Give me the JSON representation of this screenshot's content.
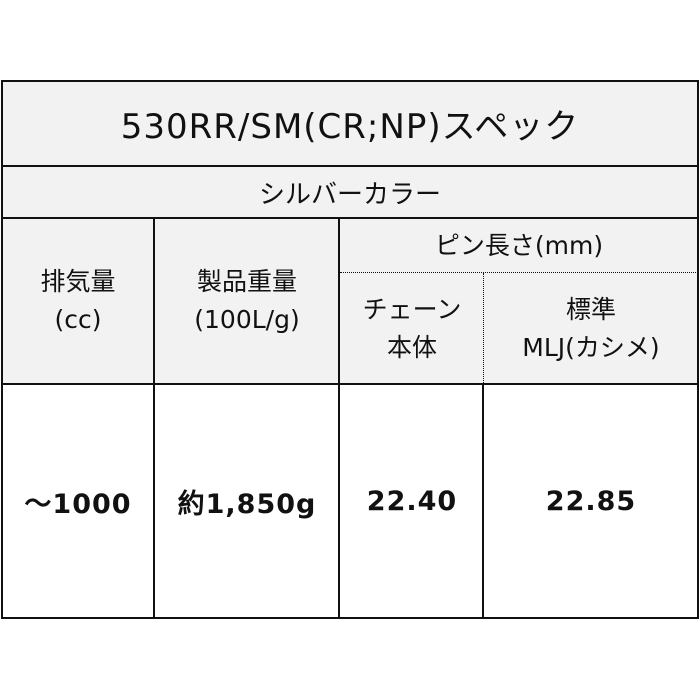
{
  "title": "530RR/SM(CR;NP)スペック",
  "color": "シルバーカラー",
  "headers": {
    "displacement": [
      "排気量",
      "(cc)"
    ],
    "weight": [
      "製品重量",
      "(100L/g)"
    ],
    "pin_length": "ピン長さ(mm)",
    "chain_body": [
      "チェーン",
      "本体"
    ],
    "standard": [
      "標準",
      "MLJ(カシメ)"
    ]
  },
  "row": {
    "displacement": "～1000",
    "weight": "約1,850g",
    "chain_body": "22.40",
    "standard": "22.85"
  }
}
